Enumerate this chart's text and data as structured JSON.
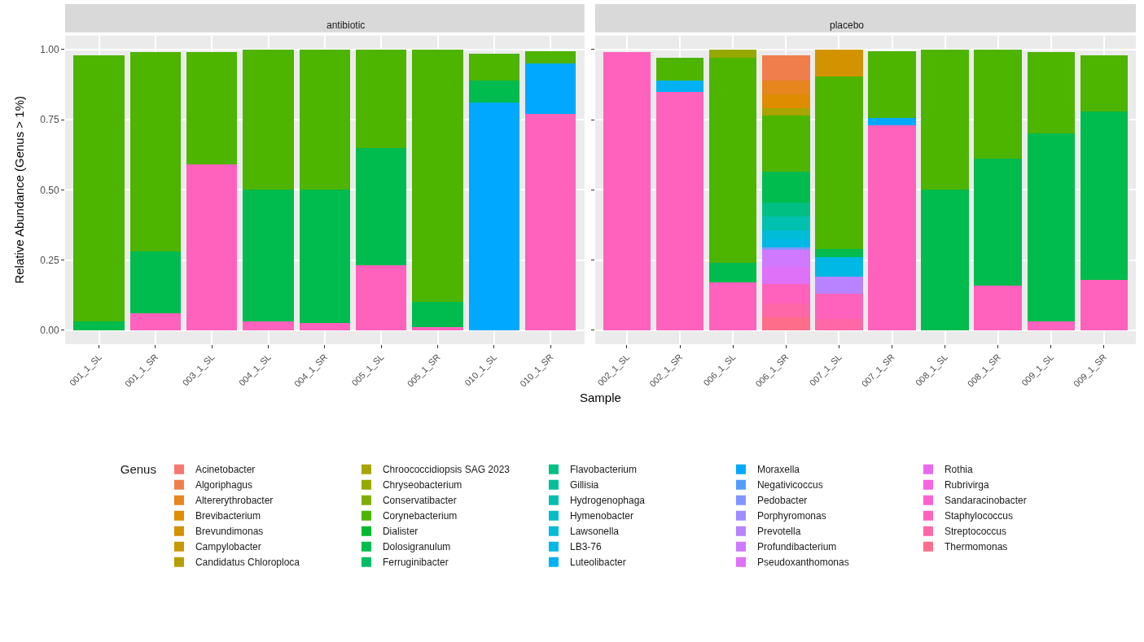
{
  "chart_data": [
    {
      "type": "bar",
      "title": "antibiotic",
      "xlabel": "Sample",
      "ylabel": "Relative Abundance (Genus > 1%)",
      "legend_title": "Genus",
      "legend": "bottom",
      "stacked": true,
      "grid": true,
      "categories": [
        "001_1_SL",
        "001_1_SR",
        "003_1_SL",
        "004_1_SL",
        "004_1_SR",
        "005_1_SL",
        "005_1_SR",
        "010_1_SL",
        "010_1_SR"
      ],
      "ylim": [
        -0.05,
        1.05
      ],
      "yticks": [
        {
          "value": 0,
          "label": "0.00"
        },
        {
          "value": 0.25,
          "label": "0.25"
        },
        {
          "value": 0.5,
          "label": "0.50"
        },
        {
          "value": 0.75,
          "label": "0.75"
        },
        {
          "value": 1,
          "label": "1.00"
        }
      ],
      "series": [
        {
          "name": "Thermomonas",
          "color": "#fe6e8a",
          "values": [
            null,
            null,
            null,
            null,
            null,
            null,
            null,
            null,
            null
          ]
        },
        {
          "name": "Streptococcus",
          "color": "#ff67a6",
          "values": [
            null,
            null,
            null,
            null,
            null,
            null,
            null,
            null,
            null
          ]
        },
        {
          "name": "Staphylococcus",
          "color": "#ff62bc",
          "values": [
            null,
            0.06,
            0.59,
            0.03,
            0.025,
            0.23,
            0.01,
            null,
            0.77
          ]
        },
        {
          "name": "Sandaracinobacter",
          "color": "#fd61d1",
          "values": [
            null,
            null,
            null,
            null,
            null,
            null,
            null,
            null,
            null
          ]
        },
        {
          "name": "Rubrivirga",
          "color": "#f763e0",
          "values": [
            null,
            null,
            null,
            null,
            null,
            null,
            null,
            null,
            null
          ]
        },
        {
          "name": "Rothia",
          "color": "#ec69ef",
          "values": [
            null,
            null,
            null,
            null,
            null,
            null,
            null,
            null,
            null
          ]
        },
        {
          "name": "Pseudoxanthomonas",
          "color": "#df70f8",
          "values": [
            null,
            null,
            null,
            null,
            null,
            null,
            null,
            null,
            null
          ]
        },
        {
          "name": "Profundibacterium",
          "color": "#ce79ff",
          "values": [
            null,
            null,
            null,
            null,
            null,
            null,
            null,
            null,
            null
          ]
        },
        {
          "name": "Prevotella",
          "color": "#b983ff",
          "values": [
            null,
            null,
            null,
            null,
            null,
            null,
            null,
            null,
            null
          ]
        },
        {
          "name": "Porphyromonas",
          "color": "#9f8cff",
          "values": [
            null,
            null,
            null,
            null,
            null,
            null,
            null,
            null,
            null
          ]
        },
        {
          "name": "Pedobacter",
          "color": "#7f96ff",
          "values": [
            null,
            null,
            null,
            null,
            null,
            null,
            null,
            null,
            null
          ]
        },
        {
          "name": "Negativicoccus",
          "color": "#529eff",
          "values": [
            null,
            null,
            null,
            null,
            null,
            null,
            null,
            null,
            null
          ]
        },
        {
          "name": "Moraxella",
          "color": "#00a9ff",
          "values": [
            null,
            null,
            null,
            null,
            null,
            null,
            null,
            0.81,
            0.18
          ]
        },
        {
          "name": "Luteolibacter",
          "color": "#00b2f3",
          "values": [
            null,
            null,
            null,
            null,
            null,
            null,
            null,
            null,
            null
          ]
        },
        {
          "name": "LB3-76",
          "color": "#00b8e5",
          "values": [
            null,
            null,
            null,
            null,
            null,
            null,
            null,
            null,
            null
          ]
        },
        {
          "name": "Lawsonella",
          "color": "#00bcd6",
          "values": [
            null,
            null,
            null,
            null,
            null,
            null,
            null,
            null,
            null
          ]
        },
        {
          "name": "Hymenobacter",
          "color": "#00bfc4",
          "values": [
            null,
            null,
            null,
            null,
            null,
            null,
            null,
            null,
            null
          ]
        },
        {
          "name": "Hydrogenophaga",
          "color": "#00c0af",
          "values": [
            null,
            null,
            null,
            null,
            null,
            null,
            null,
            null,
            null
          ]
        },
        {
          "name": "Gillisia",
          "color": "#00c09a",
          "values": [
            null,
            null,
            null,
            null,
            null,
            null,
            null,
            null,
            null
          ]
        },
        {
          "name": "Flavobacterium",
          "color": "#00bf82",
          "values": [
            null,
            null,
            null,
            null,
            null,
            null,
            null,
            null,
            null
          ]
        },
        {
          "name": "Ferruginibacter",
          "color": "#00bd68",
          "values": [
            null,
            null,
            null,
            null,
            null,
            null,
            null,
            null,
            null
          ]
        },
        {
          "name": "Dolosigranulum",
          "color": "#00bb4e",
          "values": [
            0.03,
            0.22,
            null,
            0.47,
            0.475,
            0.42,
            0.09,
            0.08,
            null
          ]
        },
        {
          "name": "Dialister",
          "color": "#00b92e",
          "values": [
            null,
            null,
            null,
            null,
            null,
            null,
            null,
            null,
            null
          ]
        },
        {
          "name": "Corynebacterium",
          "color": "#4db400",
          "values": [
            0.95,
            0.71,
            0.4,
            0.5,
            0.5,
            0.35,
            0.9,
            0.095,
            0.045
          ]
        },
        {
          "name": "Conservatibacter",
          "color": "#7fae00",
          "values": [
            null,
            null,
            null,
            null,
            null,
            null,
            null,
            null,
            null
          ]
        },
        {
          "name": "Chryseobacterium",
          "color": "#96a900",
          "values": [
            null,
            null,
            null,
            null,
            null,
            null,
            null,
            null,
            null
          ]
        },
        {
          "name": "Chroococcidiopsis SAG 2023",
          "color": "#a8a400",
          "values": [
            null,
            null,
            null,
            null,
            null,
            null,
            null,
            null,
            null
          ]
        },
        {
          "name": "Candidatus Chloroploca",
          "color": "#b89e00",
          "values": [
            null,
            null,
            null,
            null,
            null,
            null,
            null,
            null,
            null
          ]
        },
        {
          "name": "Campylobacter",
          "color": "#c79800",
          "values": [
            null,
            null,
            null,
            null,
            null,
            null,
            null,
            null,
            null
          ]
        },
        {
          "name": "Brevundimonas",
          "color": "#d39200",
          "values": [
            null,
            null,
            null,
            null,
            null,
            null,
            null,
            null,
            null
          ]
        },
        {
          "name": "Brevibacterium",
          "color": "#de8c00",
          "values": [
            null,
            null,
            null,
            null,
            null,
            null,
            null,
            null,
            null
          ]
        },
        {
          "name": "Altererythrobacter",
          "color": "#e7851e",
          "values": [
            null,
            null,
            null,
            null,
            null,
            null,
            null,
            null,
            null
          ]
        },
        {
          "name": "Algoriphagus",
          "color": "#f07e4d",
          "values": [
            null,
            null,
            null,
            null,
            null,
            null,
            null,
            null,
            null
          ]
        },
        {
          "name": "Acinetobacter",
          "color": "#f8766d",
          "values": [
            null,
            null,
            null,
            null,
            null,
            null,
            null,
            null,
            null
          ]
        }
      ]
    },
    {
      "type": "bar",
      "title": "placebo",
      "stacked": true,
      "grid": true,
      "tick_labels": "x",
      "categories": [
        "002_1_SL",
        "002_1_SR",
        "006_1_SL",
        "006_1_SR",
        "007_1_SL",
        "007_1_SR",
        "008_1_SL",
        "008_1_SR",
        "009_1_SL",
        "009_1_SR"
      ],
      "ylim": [
        -0.05,
        1.05
      ],
      "yticks": [
        {
          "value": 0,
          "label": null
        },
        {
          "value": 0.25,
          "label": null
        },
        {
          "value": 0.5,
          "label": null
        },
        {
          "value": 0.75,
          "label": null
        },
        {
          "value": 1,
          "label": null
        }
      ],
      "series": [
        {
          "color": "#fe6e8a",
          "values": [
            null,
            null,
            null,
            0.045,
            null,
            null,
            null,
            null,
            null,
            null
          ]
        },
        {
          "color": "#ff67a6",
          "values": [
            null,
            null,
            null,
            0.05,
            0.04,
            null,
            null,
            null,
            null,
            null
          ]
        },
        {
          "color": "#ff62bc",
          "values": [
            0.99,
            0.85,
            0.17,
            0.07,
            0.09,
            0.73,
            null,
            0.16,
            0.03,
            0.18
          ]
        },
        {
          "color": "#df70f8",
          "values": [
            null,
            null,
            null,
            0.06,
            null,
            null,
            null,
            null,
            null,
            null
          ]
        },
        {
          "color": "#ce79ff",
          "values": [
            null,
            null,
            null,
            0.06,
            null,
            null,
            null,
            null,
            null,
            null
          ]
        },
        {
          "color": "#b983ff",
          "values": [
            null,
            null,
            null,
            null,
            0.06,
            null,
            null,
            null,
            null,
            null
          ]
        },
        {
          "color": "#7f96ff",
          "values": [
            null,
            null,
            null,
            0.01,
            null,
            null,
            null,
            null,
            null,
            null
          ]
        },
        {
          "color": "#00a9ff",
          "values": [
            null,
            null,
            null,
            null,
            null,
            0.025,
            null,
            null,
            null,
            null
          ]
        },
        {
          "color": "#00b2f3",
          "values": [
            null,
            0.04,
            null,
            null,
            null,
            null,
            null,
            null,
            null,
            null
          ]
        },
        {
          "color": "#00b8e5",
          "values": [
            null,
            null,
            null,
            0.03,
            0.07,
            null,
            null,
            null,
            null,
            null
          ]
        },
        {
          "color": "#00bcd6",
          "values": [
            null,
            null,
            null,
            0.03,
            null,
            null,
            null,
            null,
            null,
            null
          ]
        },
        {
          "color": "#00c0af",
          "values": [
            null,
            null,
            null,
            0.05,
            null,
            null,
            null,
            null,
            null,
            null
          ]
        },
        {
          "color": "#00bf82",
          "values": [
            null,
            null,
            null,
            0.05,
            null,
            null,
            null,
            null,
            null,
            null
          ]
        },
        {
          "color": "#00bb4e",
          "values": [
            null,
            null,
            0.07,
            0.11,
            0.03,
            null,
            0.5,
            0.45,
            0.67,
            0.6
          ]
        },
        {
          "color": "#4db400",
          "values": [
            null,
            0.08,
            0.73,
            0.2,
            0.615,
            0.24,
            0.5,
            0.39,
            0.29,
            0.2
          ]
        },
        {
          "color": "#96a900",
          "values": [
            null,
            null,
            0.03,
            null,
            null,
            null,
            null,
            null,
            null,
            null
          ]
        },
        {
          "color": "#a8a400",
          "values": [
            null,
            null,
            null,
            0.025,
            null,
            null,
            null,
            null,
            null,
            null
          ]
        },
        {
          "color": "#d39200",
          "values": [
            null,
            null,
            null,
            null,
            0.095,
            null,
            null,
            null,
            null,
            null
          ]
        },
        {
          "color": "#de8c00",
          "values": [
            null,
            null,
            null,
            0.05,
            null,
            null,
            null,
            null,
            null,
            null
          ]
        },
        {
          "color": "#e7851e",
          "values": [
            null,
            null,
            null,
            0.05,
            null,
            null,
            null,
            null,
            null,
            null
          ]
        },
        {
          "color": "#f07e4d",
          "values": [
            null,
            null,
            null,
            0.09,
            null,
            null,
            null,
            null,
            null,
            null
          ]
        }
      ]
    }
  ]
}
